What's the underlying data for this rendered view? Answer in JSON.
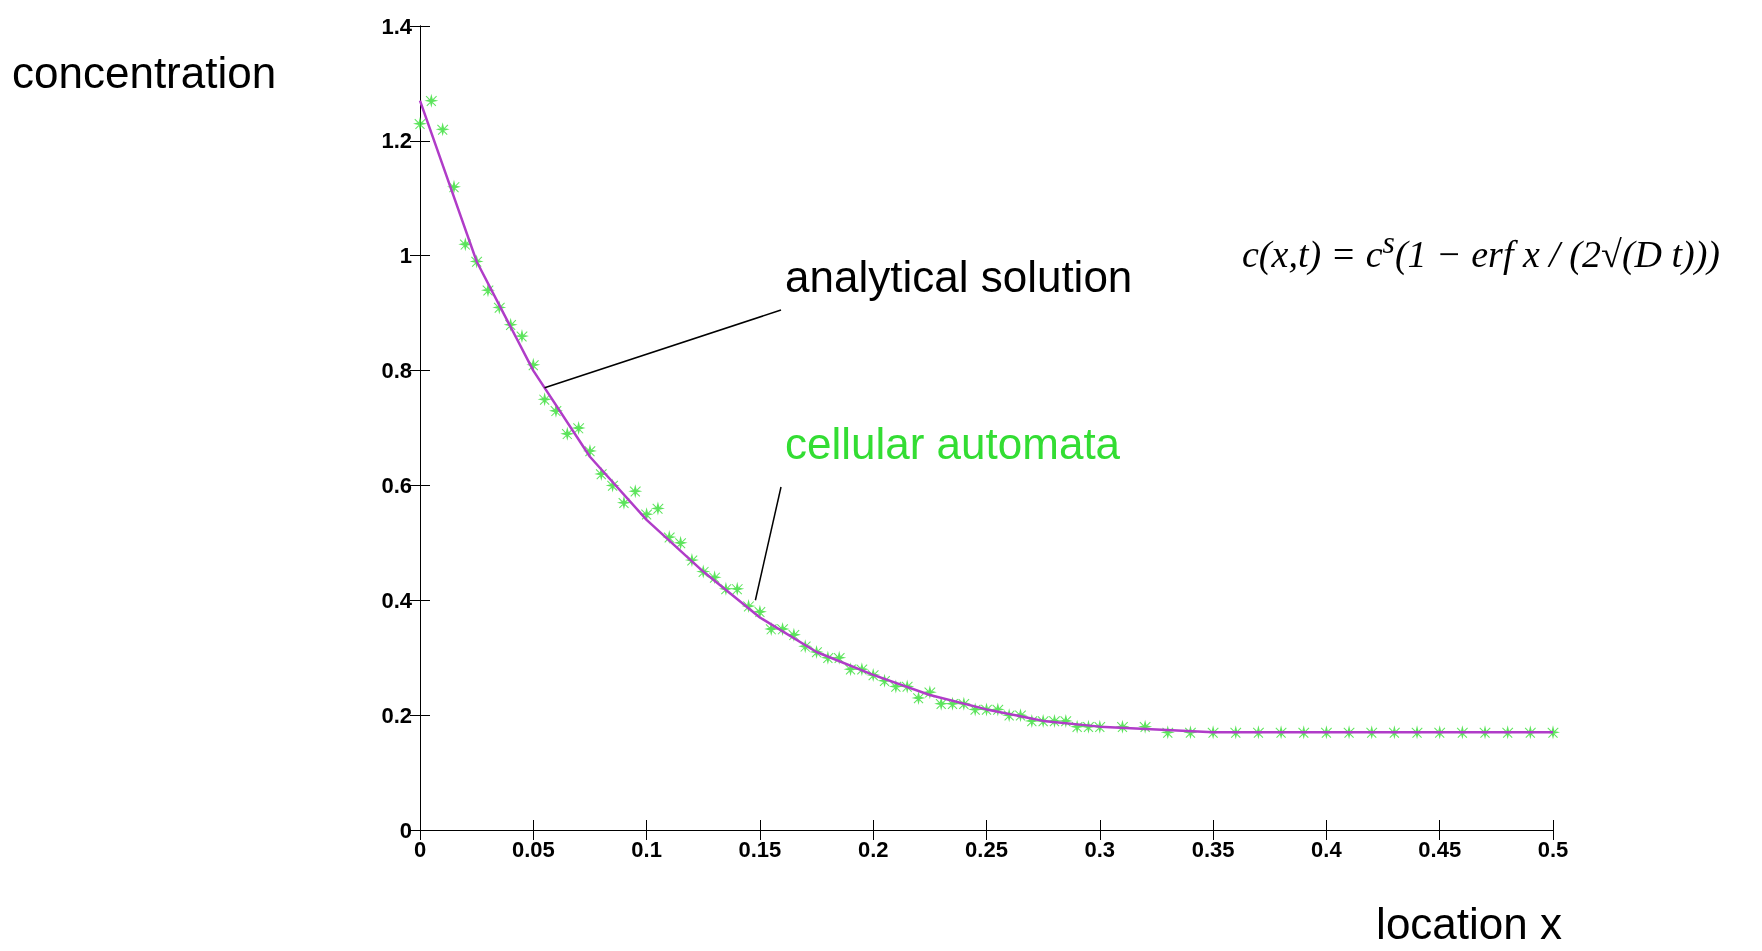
{
  "chart_data": {
    "type": "line",
    "xlabel": "location x",
    "ylabel": "concentration",
    "xlim": [
      0,
      0.5
    ],
    "xticks": [
      0,
      0.05,
      0.1,
      0.15,
      0.2,
      0.25,
      0.3,
      0.35,
      0.4,
      0.45,
      0.5
    ],
    "ylim": [
      0,
      1.4
    ],
    "yticks": [
      0,
      0.2,
      0.4,
      0.6,
      0.8,
      1,
      1.2,
      1.4
    ],
    "grid": false,
    "series": [
      {
        "color": "#b03cc8",
        "marker": "none",
        "line_style": "solid",
        "x": [
          0,
          0.025,
          0.05,
          0.075,
          0.1,
          0.125,
          0.15,
          0.175,
          0.2,
          0.225,
          0.25,
          0.275,
          0.3,
          0.325,
          0.35,
          0.4,
          0.45,
          0.5
        ],
        "values": [
          1.27,
          0.99,
          0.8,
          0.65,
          0.54,
          0.45,
          0.37,
          0.31,
          0.27,
          0.235,
          0.21,
          0.19,
          0.18,
          0.175,
          0.17,
          0.17,
          0.17,
          0.17
        ]
      },
      {
        "type": "scatter",
        "color": "#33dd33",
        "marker": "star",
        "x": [
          0,
          0.005,
          0.01,
          0.015,
          0.02,
          0.025,
          0.03,
          0.035,
          0.04,
          0.045,
          0.05,
          0.055,
          0.06,
          0.065,
          0.07,
          0.075,
          0.08,
          0.085,
          0.09,
          0.095,
          0.1,
          0.105,
          0.11,
          0.115,
          0.12,
          0.125,
          0.13,
          0.135,
          0.14,
          0.145,
          0.15,
          0.155,
          0.16,
          0.165,
          0.17,
          0.175,
          0.18,
          0.185,
          0.19,
          0.195,
          0.2,
          0.205,
          0.21,
          0.215,
          0.22,
          0.225,
          0.23,
          0.235,
          0.24,
          0.245,
          0.25,
          0.255,
          0.26,
          0.265,
          0.27,
          0.275,
          0.28,
          0.285,
          0.29,
          0.295,
          0.3,
          0.31,
          0.32,
          0.33,
          0.34,
          0.35,
          0.36,
          0.37,
          0.38,
          0.39,
          0.4,
          0.41,
          0.42,
          0.43,
          0.44,
          0.45,
          0.46,
          0.47,
          0.48,
          0.49,
          0.5
        ],
        "values": [
          1.23,
          1.27,
          1.22,
          1.12,
          1.02,
          0.99,
          0.94,
          0.91,
          0.88,
          0.86,
          0.81,
          0.75,
          0.73,
          0.69,
          0.7,
          0.66,
          0.62,
          0.6,
          0.57,
          0.59,
          0.55,
          0.56,
          0.51,
          0.5,
          0.47,
          0.45,
          0.44,
          0.42,
          0.42,
          0.39,
          0.38,
          0.35,
          0.35,
          0.34,
          0.32,
          0.31,
          0.3,
          0.3,
          0.28,
          0.28,
          0.27,
          0.26,
          0.25,
          0.25,
          0.23,
          0.24,
          0.22,
          0.22,
          0.22,
          0.21,
          0.21,
          0.21,
          0.2,
          0.2,
          0.19,
          0.19,
          0.19,
          0.19,
          0.18,
          0.18,
          0.18,
          0.18,
          0.18,
          0.17,
          0.17,
          0.17,
          0.17,
          0.17,
          0.17,
          0.17,
          0.17,
          0.17,
          0.17,
          0.17,
          0.17,
          0.17,
          0.17,
          0.17,
          0.17,
          0.17,
          0.17
        ]
      }
    ],
    "annotations": [
      {
        "text": "analytical solution",
        "x": 0.055,
        "y": 0.77
      },
      {
        "text": "cellular automata",
        "x": 0.148,
        "y": 0.4
      },
      "c(x,t) = c$^{s}$(1 − erf x / (2√(D t)))"
    ]
  }
}
